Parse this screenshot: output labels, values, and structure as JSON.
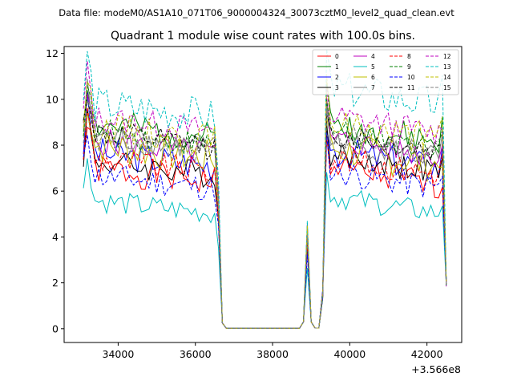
{
  "chart_data": {
    "type": "line",
    "suptitle": "Data file: modeM0/AS1A10_071T06_9000004324_30073cztM0_level2_quad_clean.evt",
    "title": "Quadrant 1 module wise count rates with 100.0s bins.",
    "xlabel": "",
    "ylabel": "",
    "x_offset_label": "+3.566e8",
    "xlim": [
      32600,
      42900
    ],
    "ylim": [
      -0.6,
      12.3
    ],
    "x_ticks": [
      34000,
      36000,
      38000,
      40000,
      42000
    ],
    "x_tick_labels": [
      "34000",
      "36000",
      "38000",
      "40000",
      "42000"
    ],
    "y_ticks": [
      0,
      2,
      4,
      6,
      8,
      10,
      12
    ],
    "y_tick_labels": [
      "0",
      "2",
      "4",
      "6",
      "8",
      "10",
      "12"
    ],
    "x_start": 33100,
    "x_step": 100,
    "x_end": 42500,
    "legend_position": "top-right",
    "series": [
      {
        "name": "0",
        "color": "#ff0000",
        "style": "solid",
        "pre": 7.0,
        "post": 6.4,
        "amp": 0.35,
        "seed": 1
      },
      {
        "name": "1",
        "color": "#008000",
        "style": "solid",
        "pre": 8.9,
        "post": 8.3,
        "amp": 0.35,
        "seed": 2
      },
      {
        "name": "2",
        "color": "#0000ff",
        "style": "solid",
        "pre": 7.7,
        "post": 7.2,
        "amp": 0.35,
        "seed": 3
      },
      {
        "name": "3",
        "color": "#000000",
        "style": "solid",
        "pre": 7.3,
        "post": 7.0,
        "amp": 0.3,
        "seed": 4
      },
      {
        "name": "4",
        "color": "#bf00bf",
        "style": "solid",
        "pre": 8.2,
        "post": 7.7,
        "amp": 0.3,
        "seed": 5
      },
      {
        "name": "5",
        "color": "#00bfbf",
        "style": "solid",
        "pre": 5.6,
        "post": 5.2,
        "amp": 0.25,
        "seed": 6
      },
      {
        "name": "6",
        "color": "#bfbf00",
        "style": "solid",
        "pre": 8.0,
        "post": 7.3,
        "amp": 0.4,
        "seed": 7
      },
      {
        "name": "7",
        "color": "#808080",
        "style": "solid",
        "pre": 8.4,
        "post": 7.6,
        "amp": 0.3,
        "seed": 8
      },
      {
        "name": "8",
        "color": "#ff0000",
        "style": "dashed",
        "pre": 7.4,
        "post": 6.9,
        "amp": 0.3,
        "seed": 9
      },
      {
        "name": "9",
        "color": "#008000",
        "style": "dashed",
        "pre": 8.6,
        "post": 8.1,
        "amp": 0.3,
        "seed": 10
      },
      {
        "name": "10",
        "color": "#0000ff",
        "style": "dashed",
        "pre": 6.7,
        "post": 6.3,
        "amp": 0.3,
        "seed": 11
      },
      {
        "name": "11",
        "color": "#000000",
        "style": "dashed",
        "pre": 8.5,
        "post": 7.9,
        "amp": 0.3,
        "seed": 12
      },
      {
        "name": "12",
        "color": "#bf00bf",
        "style": "dashed",
        "pre": 9.2,
        "post": 8.7,
        "amp": 0.3,
        "seed": 13
      },
      {
        "name": "13",
        "color": "#00bfbf",
        "style": "dashed",
        "pre": 9.8,
        "post": 9.9,
        "amp": 0.4,
        "seed": 14
      },
      {
        "name": "14",
        "color": "#bfbf00",
        "style": "dashed",
        "pre": 8.8,
        "post": 8.4,
        "amp": 0.35,
        "seed": 15
      },
      {
        "name": "15",
        "color": "#808080",
        "style": "dashed",
        "pre": 8.3,
        "post": 7.9,
        "amp": 0.3,
        "seed": 16
      }
    ]
  }
}
